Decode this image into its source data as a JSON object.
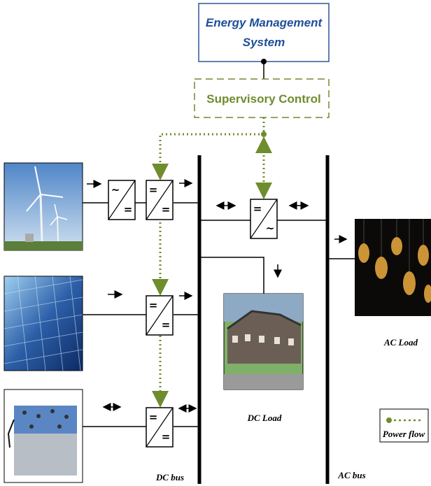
{
  "ems": {
    "lines": [
      "Energy Management",
      "System"
    ]
  },
  "supervisory": {
    "label": "Supervisory Control"
  },
  "converters": [
    {
      "top": "~",
      "bottom": "="
    },
    {
      "top": "=",
      "bottom": "="
    },
    {
      "top": "=",
      "bottom": "~"
    },
    {
      "top": "=",
      "bottom": "="
    },
    {
      "top": "=",
      "bottom": "="
    }
  ],
  "loads": {
    "dc": "DC Load",
    "ac": "AC Load"
  },
  "buses": {
    "dc": "DC bus",
    "ac": "AC bus"
  },
  "legend": {
    "label": "Power flow"
  }
}
